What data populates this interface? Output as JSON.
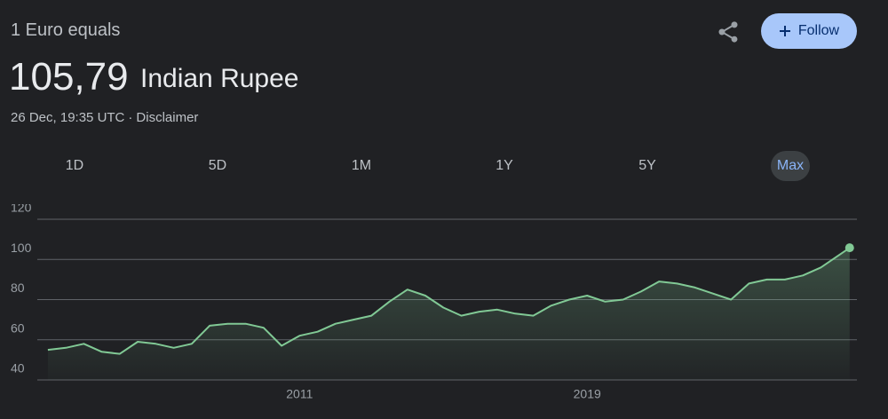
{
  "header": {
    "subtitle": "1 Euro equals",
    "value": "105,79",
    "currency": "Indian Rupee",
    "timestamp": "26 Dec, 19:35 UTC",
    "separator": "·",
    "disclaimer": "Disclaimer",
    "follow": "Follow"
  },
  "ranges": {
    "items": [
      "1D",
      "5D",
      "1M",
      "1Y",
      "5Y",
      "Max"
    ],
    "selected": 5
  },
  "chart_data": {
    "type": "line",
    "color": "#81c995",
    "grid": true,
    "x": [
      2004,
      2004.5,
      2005,
      2005.5,
      2006,
      2006.5,
      2007,
      2007.5,
      2008,
      2008.5,
      2009,
      2009.5,
      2010,
      2010.5,
      2011,
      2011.5,
      2012,
      2012.5,
      2013,
      2013.5,
      2014,
      2014.5,
      2015,
      2015.5,
      2016,
      2016.5,
      2017,
      2017.5,
      2018,
      2018.5,
      2019,
      2019.5,
      2020,
      2020.5,
      2021,
      2021.5,
      2022,
      2022.5,
      2023,
      2023.5,
      2024,
      2024.5,
      2025,
      2025.5,
      2026.3
    ],
    "values": [
      55,
      56,
      58,
      54,
      53,
      59,
      58,
      56,
      58,
      67,
      68,
      68,
      66,
      57,
      62,
      64,
      68,
      70,
      72,
      79,
      85,
      82,
      76,
      72,
      74,
      75,
      73,
      72,
      77,
      80,
      82,
      79,
      80,
      84,
      89,
      88,
      86,
      83,
      80,
      88,
      90,
      90,
      92,
      96,
      105.79
    ],
    "xlim": [
      2003.78,
      2026.38
    ],
    "xticks": [
      2011,
      2019
    ],
    "ylim": [
      40,
      120
    ],
    "yticks": [
      40,
      60,
      80,
      100,
      120
    ]
  }
}
